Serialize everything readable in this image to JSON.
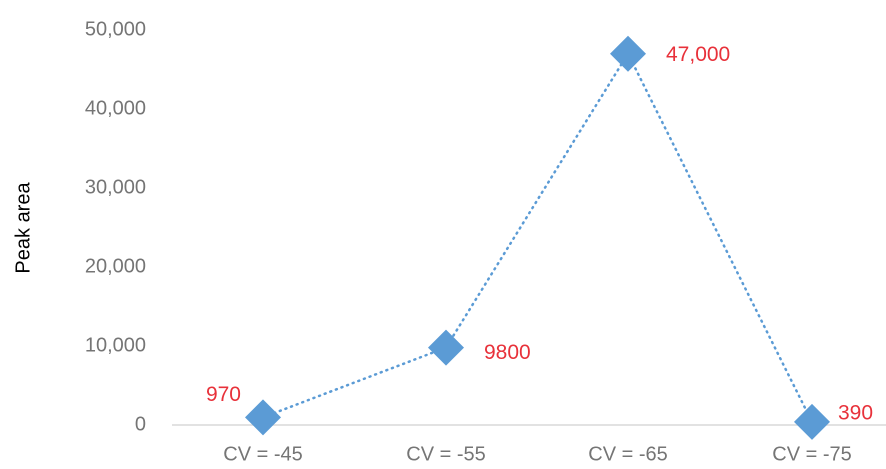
{
  "chart_data": {
    "type": "line",
    "y_label": "Peak area",
    "categories": [
      "CV = -45",
      "CV = -55",
      "CV = -65",
      "CV = -75"
    ],
    "values": [
      970,
      9800,
      47000,
      390
    ],
    "value_labels": [
      "970",
      "9800",
      "47,000",
      "390"
    ],
    "color": "#5b9bd5",
    "label_color": "#e8313a",
    "line_style": "dotted",
    "marker": "diamond",
    "ylim": [
      0,
      50000
    ],
    "yticks": [
      0,
      {
        "value": 10000,
        "label": "10,000"
      },
      {
        "value": 20000,
        "label": "20,000"
      },
      {
        "value": 30000,
        "label": "30,000"
      },
      {
        "value": 40000,
        "label": "40,000"
      },
      {
        "value": 50000,
        "label": "50,000"
      }
    ],
    "grid": false
  }
}
